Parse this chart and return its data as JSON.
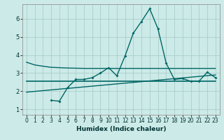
{
  "bg_color": "#cceae7",
  "grid_color": "#aacfcc",
  "line_color": "#006666",
  "xlabel": "Humidex (Indice chaleur)",
  "ylim": [
    0.7,
    6.8
  ],
  "xlim": [
    -0.5,
    23.5
  ],
  "yticks": [
    1,
    2,
    3,
    4,
    5,
    6
  ],
  "xticks": [
    0,
    1,
    2,
    3,
    4,
    5,
    6,
    7,
    8,
    9,
    10,
    11,
    12,
    13,
    14,
    15,
    16,
    17,
    18,
    19,
    20,
    21,
    22,
    23
  ],
  "line1_x": [
    0,
    1,
    2,
    3,
    4,
    5,
    6,
    7,
    8,
    9,
    10,
    11,
    12,
    13,
    14,
    15,
    16,
    17,
    18,
    19,
    20,
    21,
    22,
    23
  ],
  "line1_y": [
    3.6,
    3.45,
    3.38,
    3.32,
    3.3,
    3.28,
    3.27,
    3.26,
    3.26,
    3.26,
    3.26,
    3.26,
    3.26,
    3.26,
    3.26,
    3.26,
    3.26,
    3.26,
    3.26,
    3.26,
    3.26,
    3.26,
    3.26,
    3.26
  ],
  "line2_x": [
    3,
    4,
    5,
    6,
    7,
    8,
    9,
    10,
    11,
    12,
    13,
    14,
    15,
    16,
    17,
    18,
    19,
    20,
    21,
    22,
    23
  ],
  "line2_y": [
    1.5,
    1.45,
    2.2,
    2.65,
    2.65,
    2.75,
    3.0,
    3.3,
    2.85,
    3.95,
    5.2,
    5.85,
    6.55,
    5.45,
    3.55,
    2.65,
    2.7,
    2.55,
    2.55,
    3.05,
    2.75
  ],
  "line3_x": [
    0,
    23
  ],
  "line3_y": [
    2.55,
    2.55
  ],
  "line4_x": [
    0,
    23
  ],
  "line4_y": [
    1.95,
    2.9
  ]
}
